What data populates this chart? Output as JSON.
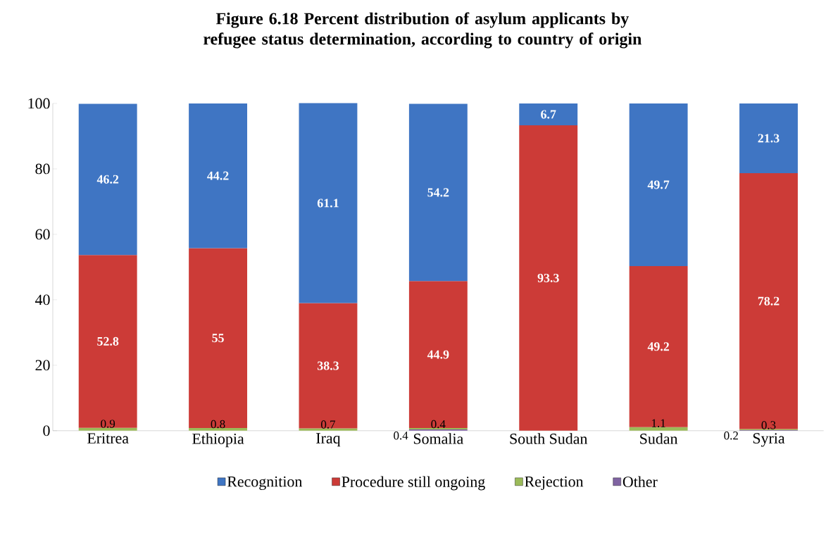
{
  "chart_data": {
    "type": "bar",
    "stacked": true,
    "title": "Figure 6.18   Percent distribution of asylum applicants by refugee status determination, according to country of origin",
    "categories": [
      "Eritrea",
      "Ethiopia",
      "Iraq",
      "Somalia",
      "South Sudan",
      "Sudan",
      "Syria"
    ],
    "series": [
      {
        "name": "Other",
        "color": "#8064a2",
        "values": [
          null,
          null,
          null,
          0.4,
          null,
          null,
          0.2
        ]
      },
      {
        "name": "Rejection",
        "color": "#9bbb59",
        "values": [
          0.9,
          0.8,
          0.7,
          0.4,
          null,
          1.1,
          0.3
        ]
      },
      {
        "name": "Procedure still ongoing",
        "color": "#cc3b37",
        "values": [
          52.8,
          55,
          38.3,
          44.9,
          93.3,
          49.2,
          78.2
        ]
      },
      {
        "name": "Recognition",
        "color": "#3f75c3",
        "values": [
          46.2,
          44.2,
          61.1,
          54.2,
          6.7,
          49.7,
          21.3
        ]
      }
    ],
    "ylim": [
      0,
      100
    ],
    "yticks": [
      0,
      20,
      40,
      60,
      80,
      100
    ],
    "data_labels": true,
    "grid": false,
    "legend": "bottom"
  }
}
